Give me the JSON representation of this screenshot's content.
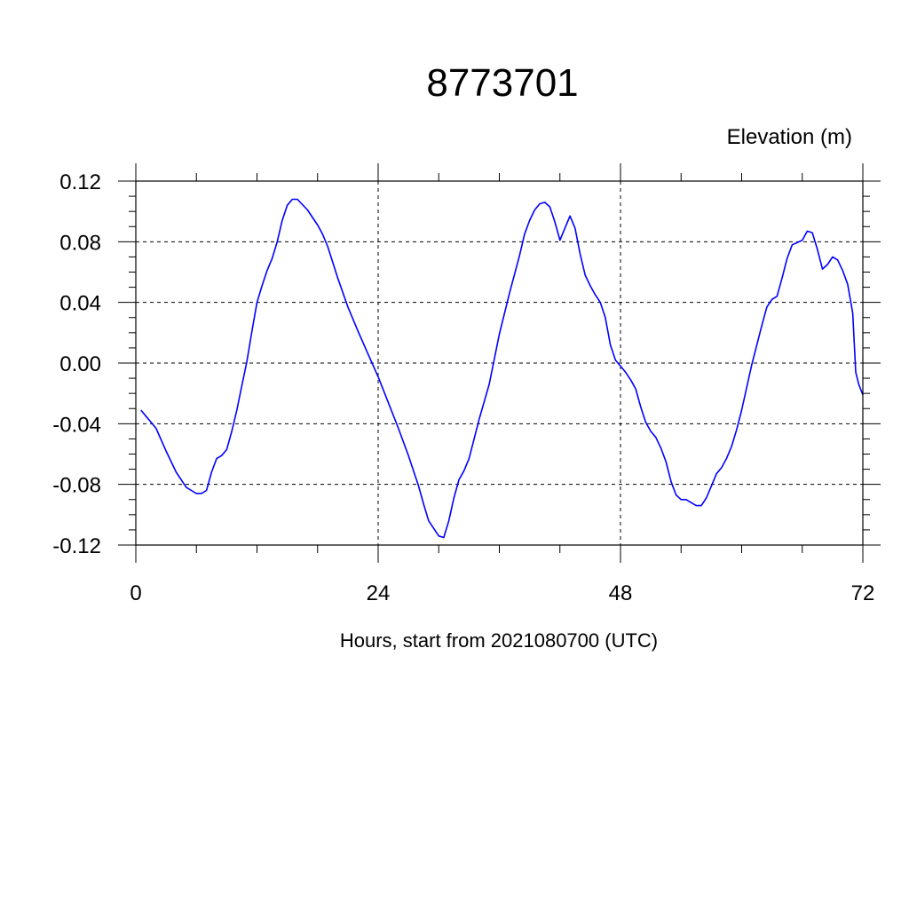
{
  "chart_data": {
    "type": "line",
    "title": "8773701",
    "ylabel": "Elevation (m)",
    "xlabel": "Hours, start from 2021080700 (UTC)",
    "xlim": [
      0,
      72
    ],
    "ylim": [
      -0.12,
      0.12
    ],
    "x_ticks": [
      0,
      24,
      48,
      72
    ],
    "x_tick_labels": [
      "0",
      "24",
      "48",
      "72"
    ],
    "y_ticks": [
      -0.12,
      -0.08,
      -0.04,
      0.0,
      0.04,
      0.08,
      0.12
    ],
    "y_tick_labels": [
      "-0.12",
      "-0.08",
      "-0.04",
      "0.00",
      "0.04",
      "0.08",
      "0.12"
    ],
    "grid": true,
    "grid_style": "dashed",
    "series": [
      {
        "color": "#0000ff",
        "x": [
          0.5,
          1.0,
          1.5,
          2.0,
          3.0,
          4.0,
          5.0,
          5.5,
          6.0,
          6.5,
          7.0,
          7.5,
          8.0,
          8.5,
          9.0,
          9.5,
          10.0,
          10.5,
          11.0,
          11.5,
          12.0,
          12.5,
          13.0,
          13.5,
          14.0,
          14.5,
          15.0,
          15.5,
          16.0,
          17.0,
          18.0,
          18.5,
          19.0,
          20.0,
          21.0,
          22.0,
          23.0,
          24.0,
          25.0,
          26.0,
          27.0,
          28.0,
          28.5,
          29.0,
          30.0,
          30.5,
          31.0,
          31.5,
          32.0,
          32.5,
          33.0,
          34.0,
          35.0,
          36.0,
          37.0,
          38.0,
          38.5,
          39.0,
          39.5,
          40.0,
          40.5,
          41.0,
          41.5,
          42.0,
          42.5,
          43.0,
          43.5,
          44.0,
          44.5,
          45.0,
          45.5,
          46.0,
          46.5,
          47.0,
          47.5,
          48.0,
          48.5,
          49.0,
          49.5,
          50.0,
          50.5,
          51.0,
          51.5,
          52.0,
          52.5,
          53.0,
          53.5,
          54.0,
          54.5,
          55.0,
          55.5,
          56.0,
          56.5,
          57.0,
          57.5,
          58.0,
          58.5,
          59.0,
          59.5,
          60.0,
          61.0,
          62.0,
          62.5,
          63.0,
          63.5,
          64.0,
          64.5,
          65.0,
          66.0,
          66.5,
          67.0,
          67.5,
          68.0,
          68.5,
          69.0,
          69.5,
          70.0,
          70.5,
          71.0,
          71.3,
          71.6,
          72.0
        ],
        "y": [
          -0.031,
          -0.035,
          -0.039,
          -0.043,
          -0.058,
          -0.072,
          -0.082,
          -0.084,
          -0.086,
          -0.086,
          -0.084,
          -0.072,
          -0.063,
          -0.061,
          -0.057,
          -0.045,
          -0.031,
          -0.015,
          0.001,
          0.021,
          0.04,
          0.051,
          0.061,
          0.069,
          0.08,
          0.094,
          0.104,
          0.108,
          0.108,
          0.101,
          0.091,
          0.085,
          0.077,
          0.056,
          0.037,
          0.021,
          0.006,
          -0.009,
          -0.026,
          -0.043,
          -0.061,
          -0.081,
          -0.093,
          -0.104,
          -0.114,
          -0.115,
          -0.104,
          -0.089,
          -0.077,
          -0.071,
          -0.063,
          -0.037,
          -0.014,
          0.019,
          0.046,
          0.071,
          0.085,
          0.094,
          0.101,
          0.105,
          0.106,
          0.103,
          0.093,
          0.081,
          0.089,
          0.097,
          0.089,
          0.072,
          0.058,
          0.051,
          0.045,
          0.04,
          0.03,
          0.012,
          0.002,
          -0.002,
          -0.006,
          -0.011,
          -0.017,
          -0.029,
          -0.039,
          -0.045,
          -0.049,
          -0.056,
          -0.065,
          -0.078,
          -0.087,
          -0.09,
          -0.09,
          -0.092,
          -0.094,
          -0.094,
          -0.089,
          -0.081,
          -0.073,
          -0.069,
          -0.063,
          -0.055,
          -0.044,
          -0.031,
          -0.001,
          0.025,
          0.037,
          0.042,
          0.044,
          0.056,
          0.069,
          0.078,
          0.081,
          0.087,
          0.086,
          0.075,
          0.062,
          0.065,
          0.07,
          0.068,
          0.061,
          0.052,
          0.033,
          -0.006,
          -0.014,
          -0.021
        ]
      }
    ]
  }
}
